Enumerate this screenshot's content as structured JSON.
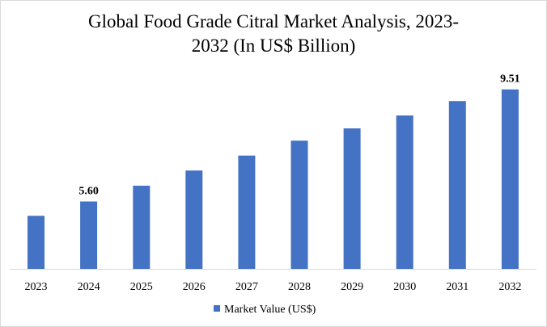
{
  "chart_data": {
    "type": "bar",
    "title_line1": "Global Food Grade Citral Market Analysis, 2023-",
    "title_line2": "2032 (In US$ Billion)",
    "categories": [
      "2023",
      "2024",
      "2025",
      "2026",
      "2027",
      "2028",
      "2029",
      "2030",
      "2031",
      "2032"
    ],
    "series": [
      {
        "name": "Market Value (US$)",
        "values": [
          5.1,
          5.6,
          6.15,
          6.68,
          7.2,
          7.72,
          8.15,
          8.6,
          9.1,
          9.51
        ],
        "color": "#4472C4"
      }
    ],
    "data_labels": [
      {
        "category": "2024",
        "text": "5.60"
      },
      {
        "category": "2032",
        "text": "9.51"
      }
    ],
    "ylim": [
      3.25,
      9.81
    ],
    "grid": false,
    "legend_position": "bottom-center"
  }
}
